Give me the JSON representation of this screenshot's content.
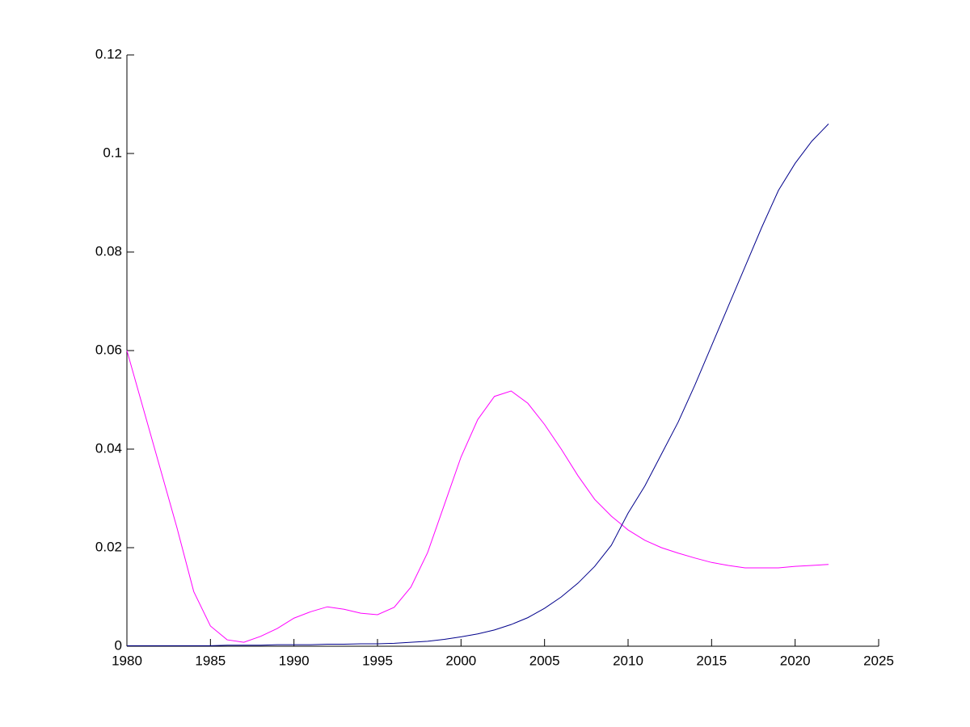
{
  "chart_data": {
    "type": "line",
    "x": [
      1980,
      1981,
      1982,
      1983,
      1984,
      1985,
      1986,
      1987,
      1988,
      1989,
      1990,
      1991,
      1992,
      1993,
      1994,
      1995,
      1996,
      1997,
      1998,
      1999,
      2000,
      2001,
      2002,
      2003,
      2004,
      2005,
      2006,
      2007,
      2008,
      2009,
      2010,
      2011,
      2012,
      2013,
      2014,
      2015,
      2016,
      2017,
      2018,
      2019,
      2020,
      2021,
      2022
    ],
    "series": [
      {
        "color": "#ff00ff",
        "values": [
          0.06,
          0.048,
          0.036,
          0.024,
          0.0111,
          0.0041,
          0.0013,
          0.0008,
          0.002,
          0.0036,
          0.0057,
          0.007,
          0.008,
          0.0075,
          0.0067,
          0.0064,
          0.0079,
          0.012,
          0.019,
          0.0287,
          0.0384,
          0.046,
          0.0507,
          0.0518,
          0.0493,
          0.045,
          0.04,
          0.0346,
          0.0298,
          0.0264,
          0.0236,
          0.0215,
          0.02,
          0.0189,
          0.0179,
          0.017,
          0.0164,
          0.0159,
          0.0159,
          0.0159,
          0.0162,
          0.0164,
          0.0166
        ]
      },
      {
        "color": "#00008b",
        "values": [
          0.0001,
          0.0001,
          0.0001,
          0.0001,
          0.0001,
          0.0001,
          0.0002,
          0.0002,
          0.0002,
          0.0003,
          0.0003,
          0.0003,
          0.0004,
          0.0004,
          0.0005,
          0.0005,
          0.0006,
          0.0008,
          0.001,
          0.0014,
          0.0019,
          0.0025,
          0.0033,
          0.0044,
          0.0058,
          0.0077,
          0.01,
          0.0128,
          0.0162,
          0.0205,
          0.027,
          0.0325,
          0.039,
          0.0455,
          0.053,
          0.061,
          0.069,
          0.077,
          0.085,
          0.0925,
          0.098,
          0.1025,
          0.106
        ]
      }
    ],
    "xlim": [
      1980,
      2025
    ],
    "xticks": [
      1980,
      1985,
      1990,
      1995,
      2000,
      2005,
      2010,
      2015,
      2020,
      2025
    ],
    "ylim": [
      0,
      0.12
    ],
    "yticks": [
      0,
      0.02,
      0.04,
      0.06,
      0.08,
      0.1,
      0.12
    ]
  }
}
